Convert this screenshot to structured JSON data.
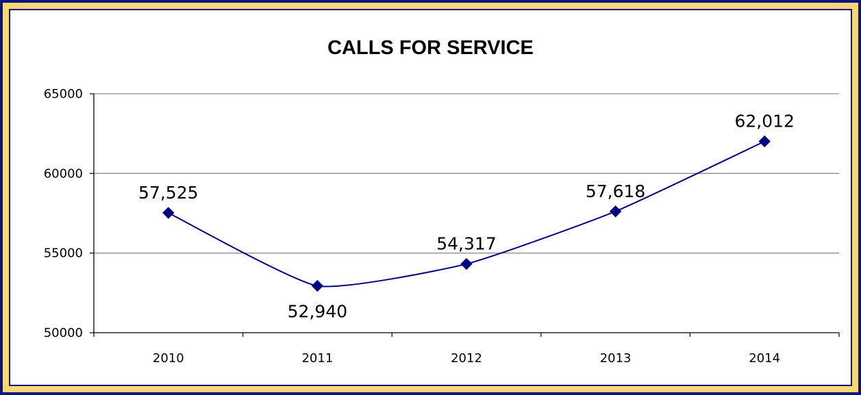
{
  "chart_data": {
    "type": "line",
    "title": "CALLS FOR SERVICE",
    "categories": [
      "2010",
      "2011",
      "2012",
      "2013",
      "2014"
    ],
    "values": [
      57525,
      52940,
      54317,
      57618,
      62012
    ],
    "data_labels": [
      "57,525",
      "52,940",
      "54,317",
      "57,618",
      "62,012"
    ],
    "ylim": [
      50000,
      65000
    ],
    "yticks": [
      50000,
      55000,
      60000,
      65000
    ],
    "ytick_labels": [
      "50000",
      "55000",
      "60000",
      "65000"
    ],
    "grid": true,
    "smooth": true,
    "marker": "diamond",
    "line_color": "#000080",
    "xlabel": "",
    "ylabel": ""
  }
}
